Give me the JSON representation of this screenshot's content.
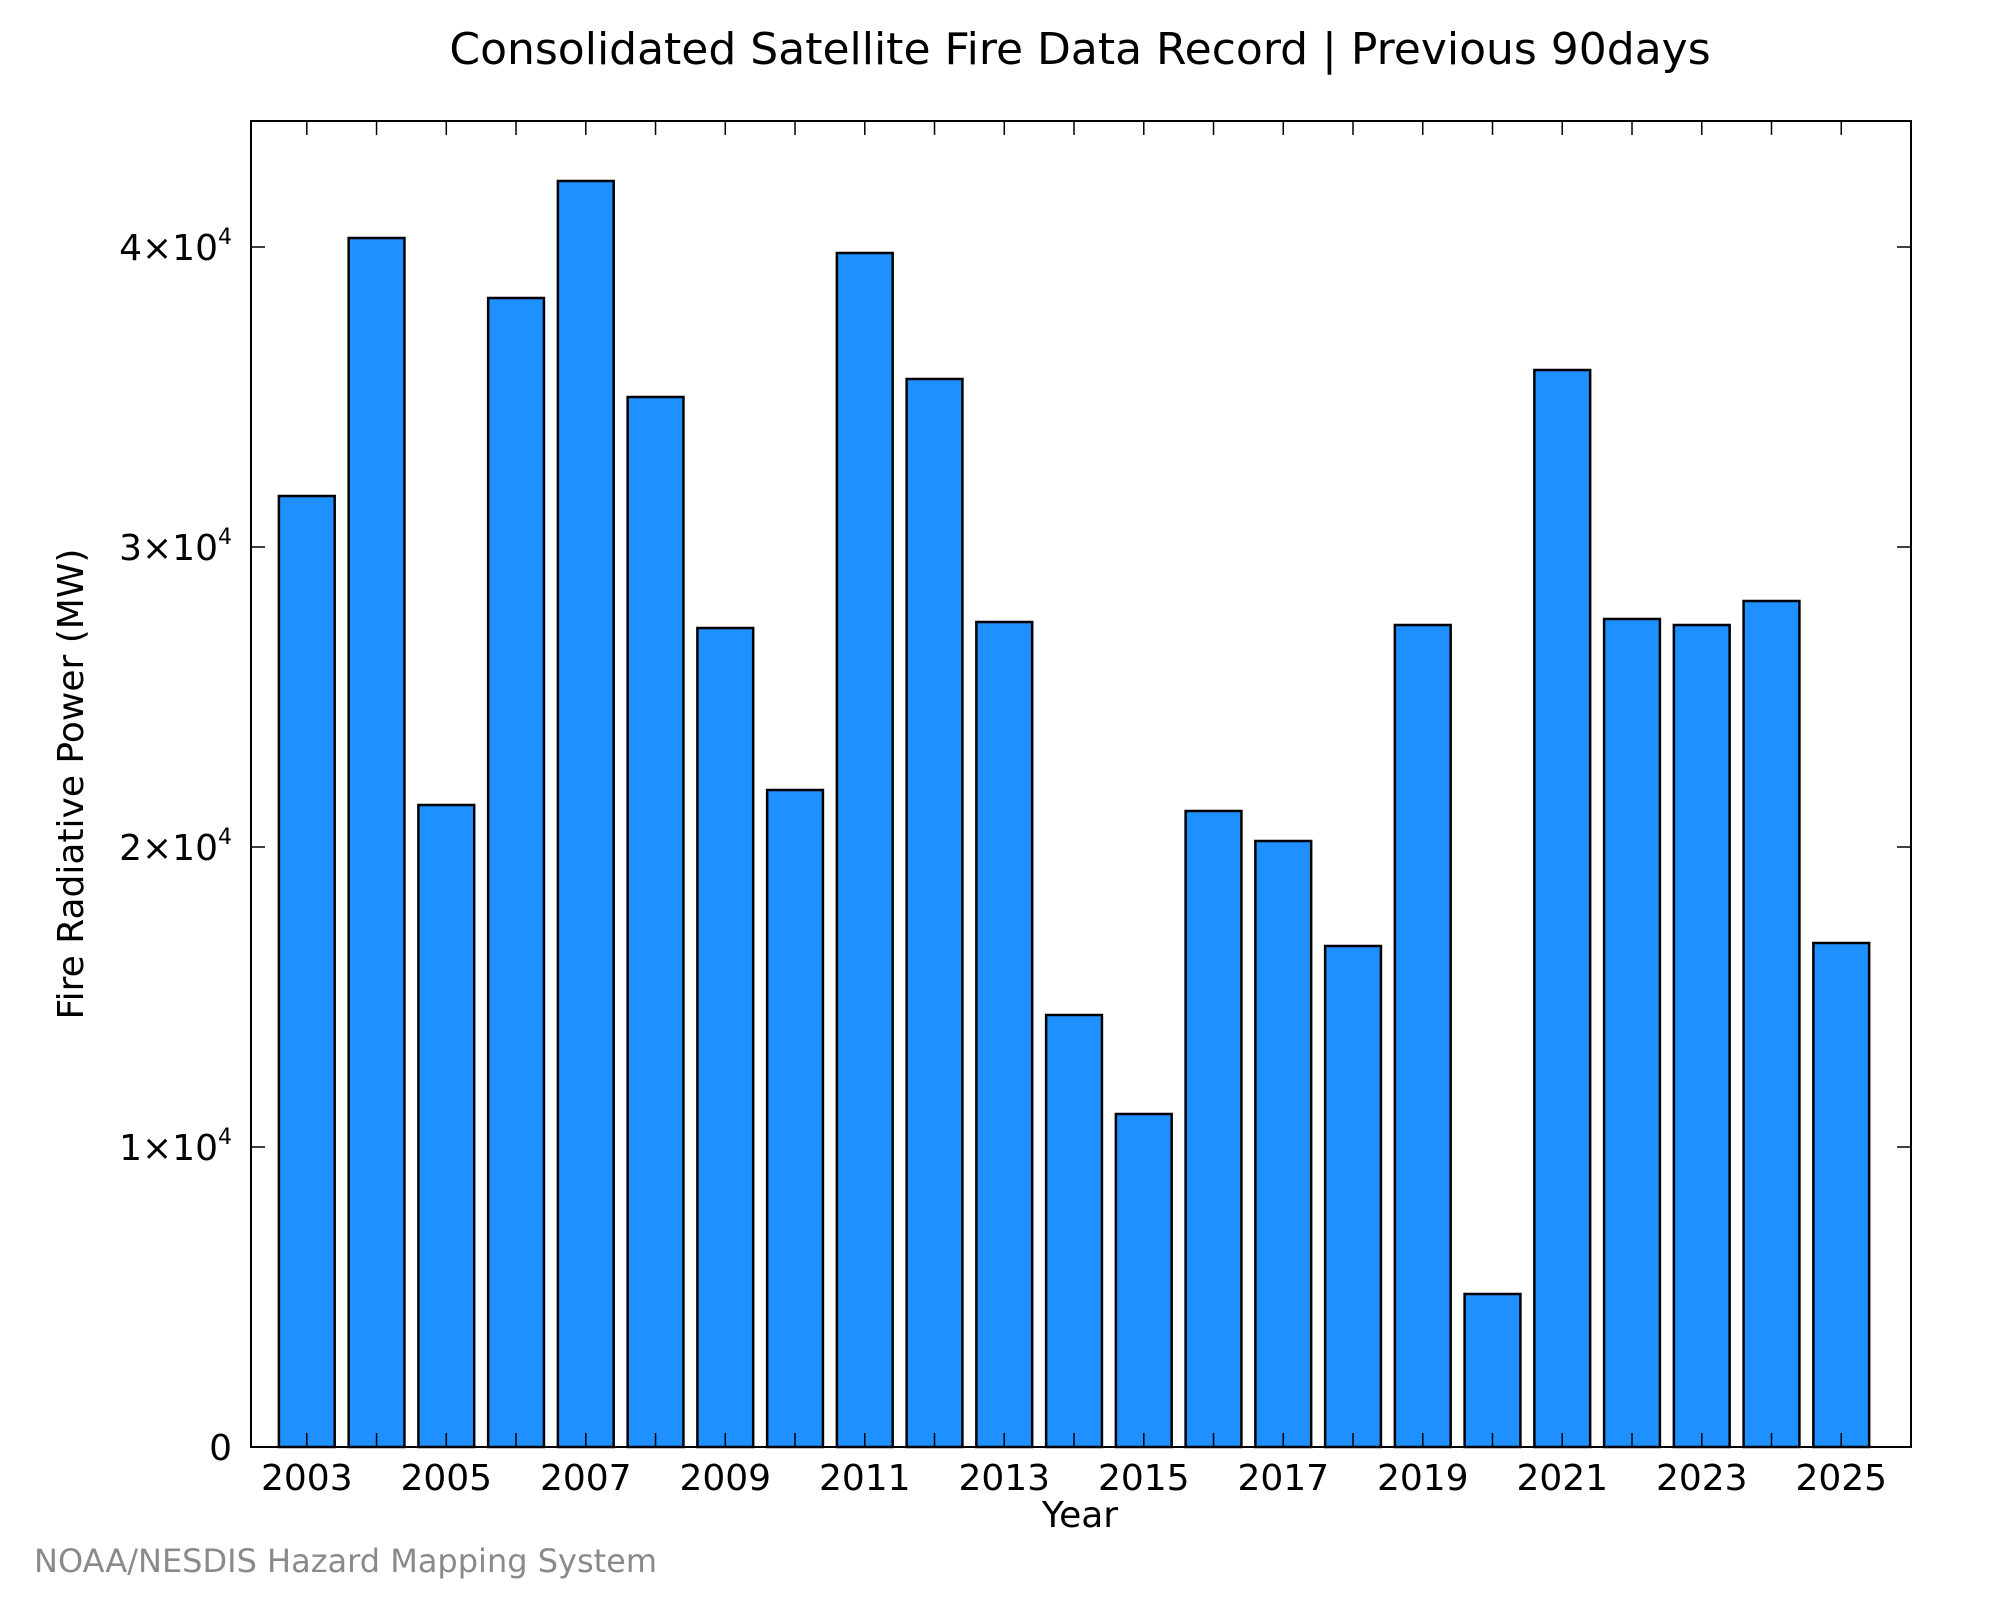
{
  "chart_data": {
    "type": "bar",
    "title": "Consolidated Satellite Fire Data Record | Previous 90days",
    "xlabel": "Year",
    "ylabel": "Fire Radiative Power (MW)",
    "categories": [
      "2003",
      "2004",
      "2005",
      "2006",
      "2007",
      "2008",
      "2009",
      "2010",
      "2011",
      "2012",
      "2013",
      "2014",
      "2015",
      "2016",
      "2017",
      "2018",
      "2019",
      "2020",
      "2021",
      "2022",
      "2023",
      "2024",
      "2025"
    ],
    "values": [
      31700,
      40300,
      21400,
      38300,
      42200,
      35000,
      27300,
      21900,
      39800,
      35600,
      27500,
      14400,
      11100,
      21200,
      20200,
      16700,
      27400,
      5100,
      35900,
      27600,
      27400,
      28200,
      16800
    ],
    "x_tick_labels": [
      "2003",
      "2005",
      "2007",
      "2009",
      "2011",
      "2013",
      "2015",
      "2017",
      "2019",
      "2021",
      "2023",
      "2025"
    ],
    "y_ticks": [
      {
        "value": 0,
        "mantissa": "0",
        "exponent": ""
      },
      {
        "value": 10000,
        "mantissa": "1×10",
        "exponent": "4"
      },
      {
        "value": 20000,
        "mantissa": "2×10",
        "exponent": "4"
      },
      {
        "value": 30000,
        "mantissa": "3×10",
        "exponent": "4"
      },
      {
        "value": 40000,
        "mantissa": "4×10",
        "exponent": "4"
      }
    ],
    "ylim": [
      0,
      44200
    ],
    "xlim": [
      2002.2,
      2026.0
    ],
    "grid": false,
    "legend": "none",
    "bar_color": "#1e90ff",
    "edge_color": "#000000"
  },
  "footer": {
    "credit": "NOAA/NESDIS Hazard Mapping System"
  }
}
